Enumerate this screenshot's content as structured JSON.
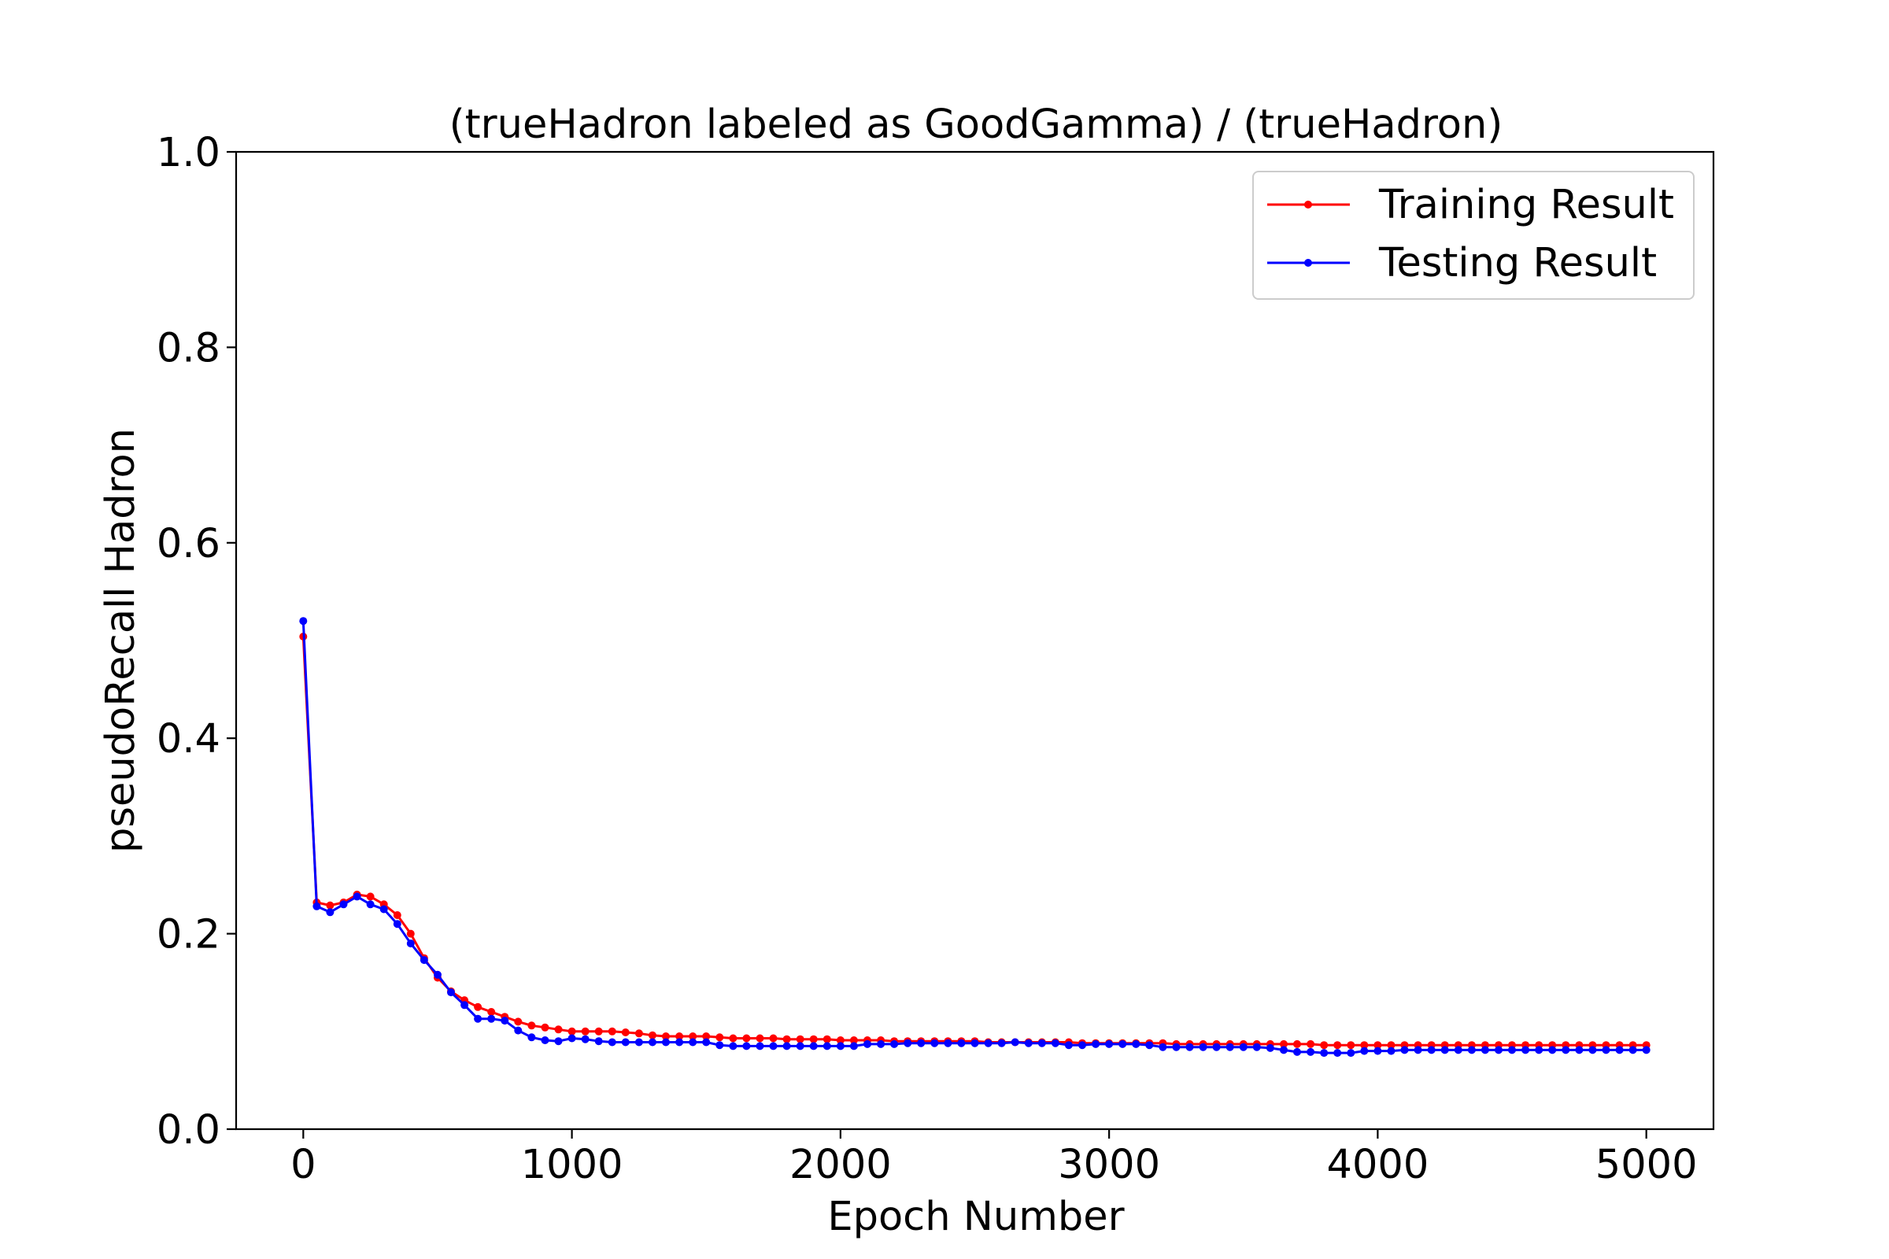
{
  "chart_data": {
    "type": "line",
    "title": "(trueHadron labeled as GoodGamma) / (trueHadron)",
    "xlabel": "Epoch Number",
    "ylabel": "pseudoRecall Hadron",
    "xlim": [
      -250,
      5250
    ],
    "ylim": [
      0.0,
      1.0
    ],
    "xticks": [
      0,
      1000,
      2000,
      3000,
      4000,
      5000
    ],
    "yticks": [
      0.0,
      0.2,
      0.4,
      0.6,
      0.8,
      1.0
    ],
    "xtick_labels": [
      "0",
      "1000",
      "2000",
      "3000",
      "4000",
      "5000"
    ],
    "ytick_labels": [
      "0.0",
      "0.2",
      "0.4",
      "0.6",
      "0.8",
      "1.0"
    ],
    "grid": false,
    "legend_position": "top-right",
    "x": [
      0,
      50,
      100,
      150,
      200,
      250,
      300,
      350,
      400,
      450,
      500,
      550,
      600,
      650,
      700,
      750,
      800,
      850,
      900,
      950,
      1000,
      1050,
      1100,
      1150,
      1200,
      1250,
      1300,
      1350,
      1400,
      1450,
      1500,
      1550,
      1600,
      1650,
      1700,
      1750,
      1800,
      1850,
      1900,
      1950,
      2000,
      2050,
      2100,
      2150,
      2200,
      2250,
      2300,
      2350,
      2400,
      2450,
      2500,
      2550,
      2600,
      2650,
      2700,
      2750,
      2800,
      2850,
      2900,
      2950,
      3000,
      3050,
      3100,
      3150,
      3200,
      3250,
      3300,
      3350,
      3400,
      3450,
      3500,
      3550,
      3600,
      3650,
      3700,
      3750,
      3800,
      3850,
      3900,
      3950,
      4000,
      4050,
      4100,
      4150,
      4200,
      4250,
      4300,
      4350,
      4400,
      4450,
      4500,
      4550,
      4600,
      4650,
      4700,
      4750,
      4800,
      4850,
      4900,
      4950,
      5000
    ],
    "series": [
      {
        "name": "Training Result",
        "color": "#ff0000",
        "values": [
          0.504,
          0.232,
          0.229,
          0.232,
          0.24,
          0.238,
          0.23,
          0.219,
          0.2,
          0.175,
          0.155,
          0.141,
          0.132,
          0.125,
          0.12,
          0.115,
          0.11,
          0.106,
          0.104,
          0.102,
          0.1,
          0.1,
          0.1,
          0.1,
          0.099,
          0.098,
          0.096,
          0.095,
          0.095,
          0.095,
          0.095,
          0.094,
          0.093,
          0.093,
          0.093,
          0.093,
          0.092,
          0.092,
          0.092,
          0.092,
          0.091,
          0.091,
          0.091,
          0.091,
          0.09,
          0.09,
          0.09,
          0.09,
          0.09,
          0.09,
          0.09,
          0.089,
          0.089,
          0.089,
          0.089,
          0.089,
          0.089,
          0.089,
          0.088,
          0.088,
          0.088,
          0.088,
          0.088,
          0.088,
          0.088,
          0.087,
          0.087,
          0.087,
          0.087,
          0.087,
          0.087,
          0.087,
          0.087,
          0.087,
          0.087,
          0.087,
          0.086,
          0.086,
          0.086,
          0.086,
          0.086,
          0.086,
          0.086,
          0.086,
          0.086,
          0.086,
          0.086,
          0.086,
          0.086,
          0.086,
          0.086,
          0.086,
          0.086,
          0.086,
          0.086,
          0.086,
          0.086,
          0.086,
          0.086,
          0.086,
          0.086
        ]
      },
      {
        "name": "Testing Result",
        "color": "#0000ff",
        "values": [
          0.52,
          0.228,
          0.222,
          0.23,
          0.238,
          0.23,
          0.225,
          0.21,
          0.19,
          0.173,
          0.158,
          0.14,
          0.127,
          0.113,
          0.113,
          0.111,
          0.101,
          0.094,
          0.091,
          0.09,
          0.093,
          0.092,
          0.09,
          0.089,
          0.089,
          0.089,
          0.089,
          0.089,
          0.089,
          0.089,
          0.089,
          0.086,
          0.085,
          0.085,
          0.085,
          0.085,
          0.085,
          0.085,
          0.085,
          0.085,
          0.085,
          0.085,
          0.087,
          0.087,
          0.087,
          0.088,
          0.088,
          0.088,
          0.088,
          0.088,
          0.088,
          0.088,
          0.088,
          0.089,
          0.088,
          0.088,
          0.088,
          0.086,
          0.086,
          0.087,
          0.087,
          0.087,
          0.087,
          0.086,
          0.084,
          0.084,
          0.084,
          0.084,
          0.084,
          0.084,
          0.084,
          0.084,
          0.083,
          0.081,
          0.079,
          0.079,
          0.078,
          0.078,
          0.078,
          0.08,
          0.08,
          0.08,
          0.081,
          0.081,
          0.081,
          0.081,
          0.081,
          0.081,
          0.081,
          0.081,
          0.081,
          0.081,
          0.081,
          0.081,
          0.081,
          0.081,
          0.081,
          0.081,
          0.081,
          0.081,
          0.081
        ]
      }
    ]
  }
}
